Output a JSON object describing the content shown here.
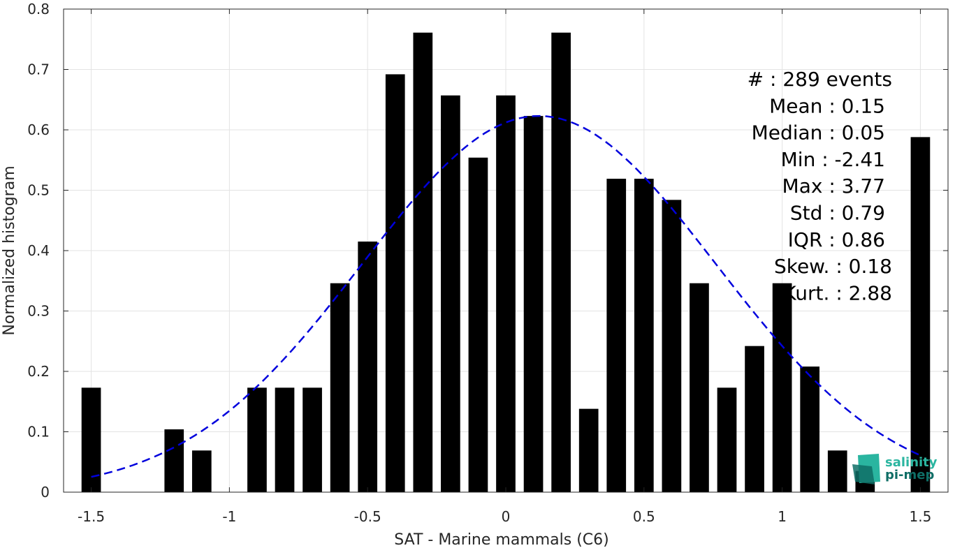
{
  "chart_data": {
    "type": "bar",
    "xlabel": "SAT - Marine mammals (C6)",
    "ylabel": "Normalized histogram",
    "xlim": [
      -1.6,
      1.6
    ],
    "ylim": [
      0,
      0.8
    ],
    "xticks": [
      -1.5,
      -1,
      -0.5,
      0,
      0.5,
      1,
      1.5
    ],
    "xtick_labels": [
      "-1.5",
      "-1",
      "-0.5",
      "0",
      "0.5",
      "1",
      "1.5"
    ],
    "yticks": [
      0,
      0.1,
      0.2,
      0.3,
      0.4,
      0.5,
      0.6,
      0.7,
      0.8
    ],
    "ytick_labels": [
      "0",
      "0.1",
      "0.2",
      "0.3",
      "0.4",
      "0.5",
      "0.6",
      "0.7",
      "0.8"
    ],
    "grid": true,
    "bar_width": 0.07,
    "x": [
      -1.5,
      -1.4,
      -1.3,
      -1.2,
      -1.1,
      -1.0,
      -0.9,
      -0.8,
      -0.7,
      -0.6,
      -0.5,
      -0.4,
      -0.3,
      -0.2,
      -0.1,
      0.0,
      0.1,
      0.2,
      0.3,
      0.4,
      0.5,
      0.6,
      0.7,
      0.8,
      0.9,
      1.0,
      1.1,
      1.2,
      1.3,
      1.5
    ],
    "values": [
      0.173,
      0,
      0,
      0.104,
      0.069,
      0,
      0.173,
      0.173,
      0.173,
      0.346,
      0.415,
      0.692,
      0.761,
      0.657,
      0.554,
      0.657,
      0.623,
      0.761,
      0.138,
      0.519,
      0.519,
      0.484,
      0.346,
      0.173,
      0.242,
      0.346,
      0.208,
      0.069,
      0.035,
      0.588
    ],
    "bar_color": "#000000",
    "fit_curve": {
      "style": "dashed",
      "color": "#0000dd",
      "x_range": [
        -1.5,
        1.5
      ],
      "mean": 0.12,
      "std": 0.64,
      "peak": 0.623
    }
  },
  "stats": [
    {
      "label": "#  : 289 events",
      "anchor": "right-far"
    },
    {
      "label": "Mean : 0.15",
      "anchor": "right"
    },
    {
      "label": "Median : 0.05",
      "anchor": "right"
    },
    {
      "label": "Min : -2.41",
      "anchor": "right"
    },
    {
      "label": "Max : 3.77",
      "anchor": "right"
    },
    {
      "label": "Std : 0.79",
      "anchor": "right"
    },
    {
      "label": "IQR : 0.86",
      "anchor": "right"
    },
    {
      "label": "Skew. : 0.18",
      "anchor": "right-far"
    },
    {
      "label": "Kurt. : 2.88",
      "anchor": "right-far"
    }
  ],
  "logo": {
    "line1": "salinity",
    "line2": "pi-mep",
    "color_light": "#2ab5a0",
    "color_dark": "#0f6e66"
  }
}
